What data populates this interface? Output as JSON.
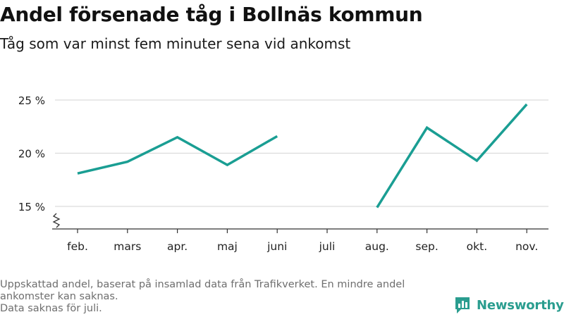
{
  "title": "Andel försenade tåg i Bollnäs kommun",
  "subtitle": "Tåg som var minst fem minuter sena vid ankomst",
  "footnote": {
    "line1": "Uppskattad andel, baserat på insamlad data från Trafikverket. En mindre andel ankomster kan saknas.",
    "line2": "Data saknas för juli."
  },
  "brand": {
    "name": "Newsworthy",
    "color": "#2a9d8f"
  },
  "chart_data": {
    "type": "line",
    "categories": [
      "feb.",
      "mars",
      "apr.",
      "maj",
      "juni",
      "juli",
      "aug.",
      "sep.",
      "okt.",
      "nov."
    ],
    "series": [
      {
        "values": [
          18.1,
          19.2,
          21.5,
          18.9,
          21.6,
          null,
          14.9,
          22.4,
          19.3,
          24.6
        ]
      }
    ],
    "ylim": [
      15,
      25
    ],
    "y_ticks": [
      15,
      20,
      25
    ],
    "y_tick_labels": [
      "15 %",
      "20 %",
      "25 %"
    ],
    "y_axis_break": true,
    "grid": true,
    "line_color": "#1a9e93",
    "grid_color": "#dcdcdc",
    "xlabel": "",
    "ylabel": ""
  }
}
